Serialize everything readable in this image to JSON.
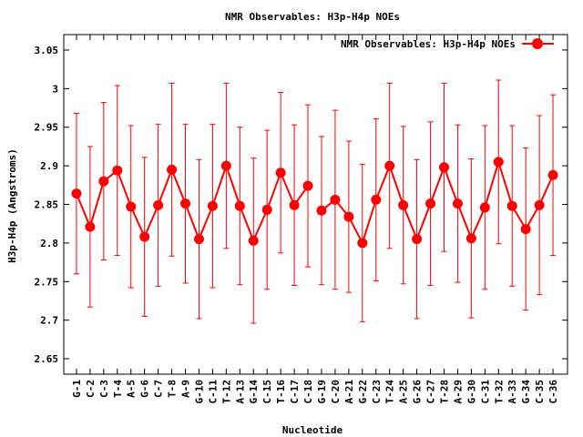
{
  "chart_data": {
    "type": "line",
    "title": "NMR Observables: H3p-H4p NOEs",
    "xlabel": "Nucleotide",
    "ylabel": "H3p-H4p (Angstroms)",
    "ylim": [
      2.63,
      3.07
    ],
    "yticks": [
      "2.65",
      "2.7",
      "2.75",
      "2.8",
      "2.85",
      "2.9",
      "2.95",
      "3",
      "3.05"
    ],
    "legend_position": "top-right",
    "grid": false,
    "categories": [
      "G-1",
      "C-2",
      "C-3",
      "T-4",
      "A-5",
      "G-6",
      "C-7",
      "T-8",
      "A-9",
      "G-10",
      "C-11",
      "T-12",
      "A-13",
      "G-14",
      "C-15",
      "T-16",
      "C-17",
      "C-18",
      "G-19",
      "C-20",
      "A-21",
      "G-22",
      "C-23",
      "T-24",
      "A-25",
      "G-26",
      "C-27",
      "T-28",
      "A-29",
      "G-30",
      "C-31",
      "T-32",
      "A-33",
      "G-34",
      "C-35",
      "C-36"
    ],
    "series": [
      {
        "name": "NMR Observables: H3p-H4p NOEs",
        "color": "#ff0000",
        "segments": [
          [
            0,
            17
          ],
          [
            18,
            35
          ]
        ],
        "values": [
          2.864,
          2.821,
          2.88,
          2.894,
          2.847,
          2.808,
          2.849,
          2.895,
          2.851,
          2.805,
          2.848,
          2.9,
          2.848,
          2.803,
          2.843,
          2.891,
          2.849,
          2.874,
          2.842,
          2.856,
          2.834,
          2.8,
          2.856,
          2.9,
          2.849,
          2.805,
          2.851,
          2.898,
          2.851,
          2.806,
          2.846,
          2.905,
          2.848,
          2.818,
          2.849,
          2.888
        ],
        "errors": [
          0.104,
          0.104,
          0.102,
          0.11,
          0.105,
          0.103,
          0.105,
          0.112,
          0.103,
          0.103,
          0.106,
          0.107,
          0.102,
          0.107,
          0.103,
          0.104,
          0.104,
          0.105,
          0.096,
          0.116,
          0.098,
          0.102,
          0.105,
          0.107,
          0.102,
          0.103,
          0.106,
          0.109,
          0.102,
          0.103,
          0.106,
          0.106,
          0.104,
          0.105,
          0.116,
          0.104
        ]
      }
    ]
  }
}
